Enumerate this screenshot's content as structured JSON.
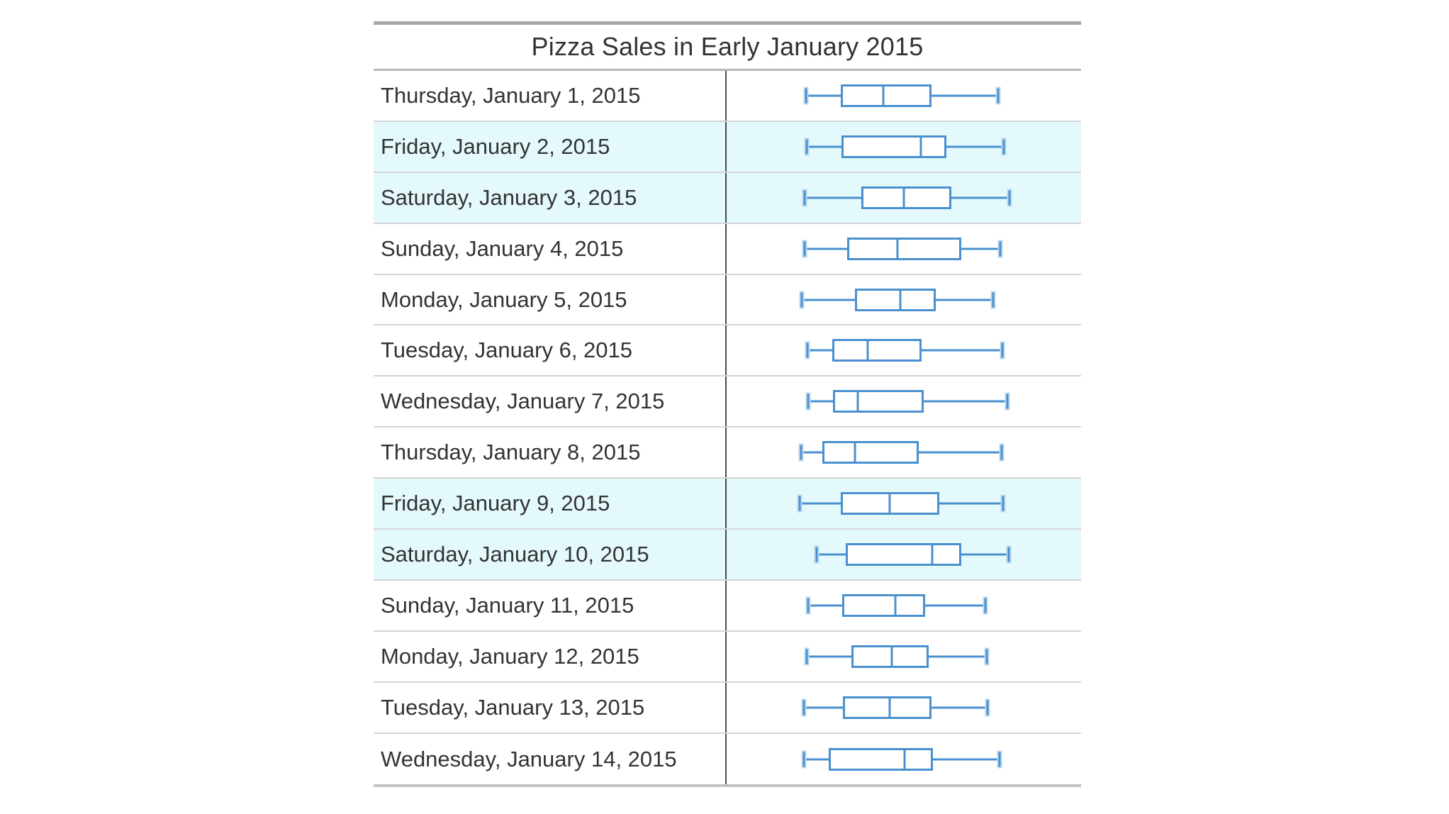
{
  "title": "Pizza Sales in Early January 2015",
  "colors": {
    "accent-blue": "#4a90cf",
    "cap-halo": "#bcd8f0",
    "highlight": "#e4f9fc",
    "divider": "#d5d5d5",
    "border-heavy": "#a8a8a8",
    "border-med": "#b9b9b9",
    "border-bottom": "#c2c2c2",
    "vline": "#4a4a4a",
    "text": "#333333",
    "background": "#ffffff"
  },
  "chart_data": {
    "type": "boxplot",
    "orientation": "horizontal",
    "title": "Pizza Sales in Early January 2015",
    "xlabel": "",
    "ylabel": "",
    "axis_note": "No numeric axis is shown; box statistics are recorded as percent (0-100) of the plot column width",
    "units": "percent-of-plot-width",
    "legend": "none",
    "grid": "row dividers only",
    "highlighted_categories": [
      "Friday, January 2, 2015",
      "Saturday, January 3, 2015",
      "Friday, January 9, 2015",
      "Saturday, January 10, 2015"
    ],
    "categories": [
      "Thursday, January 1, 2015",
      "Friday, January 2, 2015",
      "Saturday, January 3, 2015",
      "Sunday, January 4, 2015",
      "Monday, January 5, 2015",
      "Tuesday, January 6, 2015",
      "Wednesday, January 7, 2015",
      "Thursday, January 8, 2015",
      "Friday, January 9, 2015",
      "Saturday, January 10, 2015",
      "Sunday, January 11, 2015",
      "Monday, January 12, 2015",
      "Tuesday, January 13, 2015",
      "Wednesday, January 14, 2015"
    ],
    "rows": [
      {
        "label": "Thursday, January 1, 2015",
        "highlighted": false,
        "stats": {
          "min": 22.3,
          "q1": 32.2,
          "median": 44.1,
          "q3": 57.7,
          "max": 76.5
        }
      },
      {
        "label": "Friday, January 2, 2015",
        "highlighted": true,
        "stats": {
          "min": 22.5,
          "q1": 32.3,
          "median": 54.8,
          "q3": 62.0,
          "max": 78.1
        }
      },
      {
        "label": "Saturday, January 3, 2015",
        "highlighted": true,
        "stats": {
          "min": 22.0,
          "q1": 37.9,
          "median": 50.0,
          "q3": 63.3,
          "max": 79.7
        }
      },
      {
        "label": "Sunday, January 4, 2015",
        "highlighted": false,
        "stats": {
          "min": 21.9,
          "q1": 34.0,
          "median": 48.2,
          "q3": 66.2,
          "max": 77.2
        }
      },
      {
        "label": "Monday, January 5, 2015",
        "highlighted": false,
        "stats": {
          "min": 21.1,
          "q1": 36.2,
          "median": 49.0,
          "q3": 59.0,
          "max": 75.2
        }
      },
      {
        "label": "Tuesday, January 6, 2015",
        "highlighted": false,
        "stats": {
          "min": 22.7,
          "q1": 29.7,
          "median": 39.8,
          "q3": 55.0,
          "max": 77.7
        }
      },
      {
        "label": "Wednesday, January 7, 2015",
        "highlighted": false,
        "stats": {
          "min": 23.0,
          "q1": 29.9,
          "median": 37.0,
          "q3": 55.5,
          "max": 79.1
        }
      },
      {
        "label": "Thursday, January 8, 2015",
        "highlighted": false,
        "stats": {
          "min": 21.0,
          "q1": 27.0,
          "median": 36.2,
          "q3": 54.2,
          "max": 77.5
        }
      },
      {
        "label": "Friday, January 9, 2015",
        "highlighted": true,
        "stats": {
          "min": 20.5,
          "q1": 32.2,
          "median": 46.0,
          "q3": 59.9,
          "max": 78.0
        }
      },
      {
        "label": "Saturday, January 10, 2015",
        "highlighted": true,
        "stats": {
          "min": 25.3,
          "q1": 33.5,
          "median": 57.9,
          "q3": 66.2,
          "max": 79.5
        }
      },
      {
        "label": "Sunday, January 11, 2015",
        "highlighted": false,
        "stats": {
          "min": 22.9,
          "q1": 32.5,
          "median": 47.5,
          "q3": 56.0,
          "max": 72.9
        }
      },
      {
        "label": "Monday, January 12, 2015",
        "highlighted": false,
        "stats": {
          "min": 22.5,
          "q1": 35.1,
          "median": 46.5,
          "q3": 57.0,
          "max": 73.3
        }
      },
      {
        "label": "Tuesday, January 13, 2015",
        "highlighted": false,
        "stats": {
          "min": 21.8,
          "q1": 32.7,
          "median": 45.9,
          "q3": 57.7,
          "max": 73.5
        }
      },
      {
        "label": "Wednesday, January 14, 2015",
        "highlighted": false,
        "stats": {
          "min": 21.7,
          "q1": 28.8,
          "median": 50.2,
          "q3": 58.1,
          "max": 76.9
        }
      }
    ]
  }
}
